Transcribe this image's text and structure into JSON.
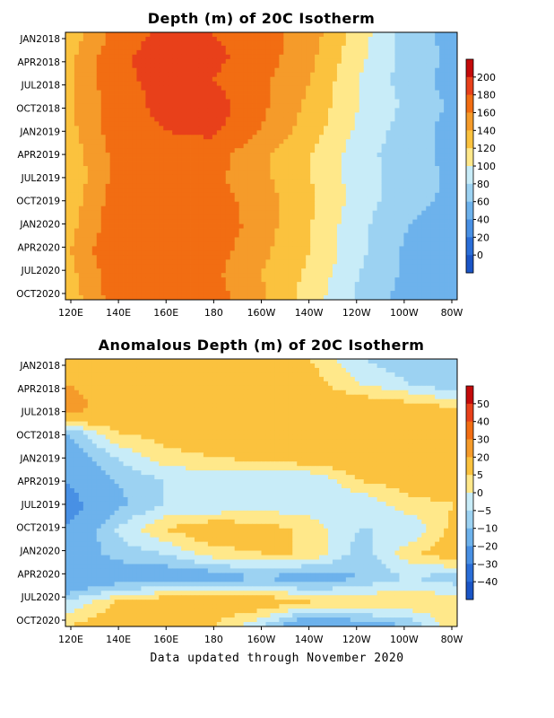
{
  "footer": "Data updated through November 2020",
  "chart_data": [
    {
      "type": "heatmap",
      "title": "Depth (m) of 20C Isotherm",
      "xlabel": "",
      "ylabel": "",
      "x_ticks": [
        "120E",
        "140E",
        "160E",
        "180",
        "160W",
        "140W",
        "120W",
        "100W",
        "80W"
      ],
      "y_ticks": [
        "JAN2018",
        "APR2018",
        "JUL2018",
        "OCT2018",
        "JAN2019",
        "APR2019",
        "JUL2019",
        "OCT2019",
        "JAN2020",
        "APR2020",
        "JUL2020",
        "OCT2020"
      ],
      "colorbar": {
        "labels": [
          "200",
          "180",
          "160",
          "140",
          "120",
          "100",
          "80",
          "60",
          "40",
          "20",
          "0"
        ],
        "colors": [
          "#c40a0a",
          "#e8401a",
          "#f26d12",
          "#f59b2a",
          "#fbc23e",
          "#ffe88a",
          "#c8ecf8",
          "#9cd2f2",
          "#6db2ec",
          "#4890e4",
          "#2a6ed8",
          "#1a55c6"
        ]
      },
      "x_values": [
        120,
        140,
        160,
        180,
        200,
        220,
        240,
        260,
        280
      ],
      "rows": [
        "JAN2018",
        "APR2018",
        "JUL2018",
        "OCT2018",
        "JAN2019",
        "APR2019",
        "JUL2019",
        "OCT2019",
        "JAN2020",
        "APR2020",
        "JUL2020",
        "OCT2020"
      ],
      "values": [
        [
          125,
          165,
          185,
          180,
          170,
          150,
          110,
          70,
          50
        ],
        [
          130,
          175,
          190,
          185,
          170,
          145,
          105,
          70,
          55
        ],
        [
          130,
          175,
          185,
          180,
          165,
          140,
          100,
          70,
          50
        ],
        [
          135,
          170,
          185,
          190,
          165,
          135,
          100,
          75,
          55
        ],
        [
          130,
          170,
          180,
          185,
          160,
          130,
          95,
          70,
          50
        ],
        [
          125,
          165,
          175,
          170,
          145,
          120,
          90,
          65,
          55
        ],
        [
          120,
          165,
          175,
          165,
          145,
          120,
          90,
          70,
          55
        ],
        [
          125,
          170,
          175,
          170,
          150,
          125,
          90,
          65,
          55
        ],
        [
          130,
          170,
          180,
          175,
          150,
          120,
          85,
          60,
          50
        ],
        [
          135,
          180,
          180,
          170,
          145,
          120,
          85,
          55,
          45
        ],
        [
          130,
          170,
          175,
          165,
          140,
          115,
          80,
          55,
          40
        ],
        [
          125,
          170,
          180,
          170,
          145,
          110,
          75,
          50,
          40
        ]
      ]
    },
    {
      "type": "heatmap",
      "title": "Anomalous Depth (m) of 20C Isotherm",
      "xlabel": "",
      "ylabel": "",
      "x_ticks": [
        "120E",
        "140E",
        "160E",
        "180",
        "160W",
        "140W",
        "120W",
        "100W",
        "80W"
      ],
      "y_ticks": [
        "JAN2018",
        "APR2018",
        "JUL2018",
        "OCT2018",
        "JAN2019",
        "APR2019",
        "JUL2019",
        "OCT2019",
        "JAN2020",
        "APR2020",
        "JUL2020",
        "OCT2020"
      ],
      "colorbar": {
        "labels": [
          "50",
          "40",
          "30",
          "20",
          "5",
          "0",
          "−5",
          "−10",
          "−20",
          "−30",
          "−40"
        ],
        "colors": [
          "#c40a0a",
          "#e8401a",
          "#f26d12",
          "#f59b2a",
          "#fbc23e",
          "#ffe88a",
          "#c8ecf8",
          "#9cd2f2",
          "#6db2ec",
          "#4890e4",
          "#2a6ed8",
          "#1a55c6"
        ]
      },
      "x_values": [
        120,
        140,
        160,
        180,
        200,
        220,
        240,
        260,
        280
      ],
      "rows": [
        "JAN2018",
        "APR2018",
        "JUL2018",
        "OCT2018",
        "JAN2019",
        "APR2019",
        "JUL2019",
        "OCT2019",
        "JAN2020",
        "APR2020",
        "JUL2020",
        "OCT2020"
      ],
      "values": [
        [
          10,
          10,
          10,
          8,
          6,
          5,
          -5,
          -8,
          -10
        ],
        [
          20,
          8,
          10,
          8,
          10,
          8,
          0,
          -5,
          -10
        ],
        [
          30,
          10,
          8,
          10,
          8,
          8,
          10,
          8,
          5
        ],
        [
          -10,
          5,
          8,
          10,
          10,
          10,
          10,
          10,
          8
        ],
        [
          -15,
          -5,
          3,
          5,
          8,
          10,
          10,
          8,
          10
        ],
        [
          -20,
          -10,
          -5,
          -3,
          -5,
          -5,
          5,
          8,
          10
        ],
        [
          -25,
          -12,
          -5,
          -5,
          -3,
          -3,
          -5,
          3,
          5
        ],
        [
          -20,
          -5,
          5,
          10,
          8,
          3,
          -5,
          -5,
          8
        ],
        [
          -15,
          -8,
          -5,
          3,
          5,
          5,
          -8,
          3,
          10
        ],
        [
          -20,
          -15,
          -15,
          -15,
          -10,
          -15,
          -10,
          -5,
          -8
        ],
        [
          -5,
          5,
          10,
          10,
          10,
          5,
          5,
          5,
          3
        ],
        [
          5,
          10,
          10,
          5,
          -5,
          -20,
          -15,
          -10,
          5
        ]
      ]
    }
  ]
}
